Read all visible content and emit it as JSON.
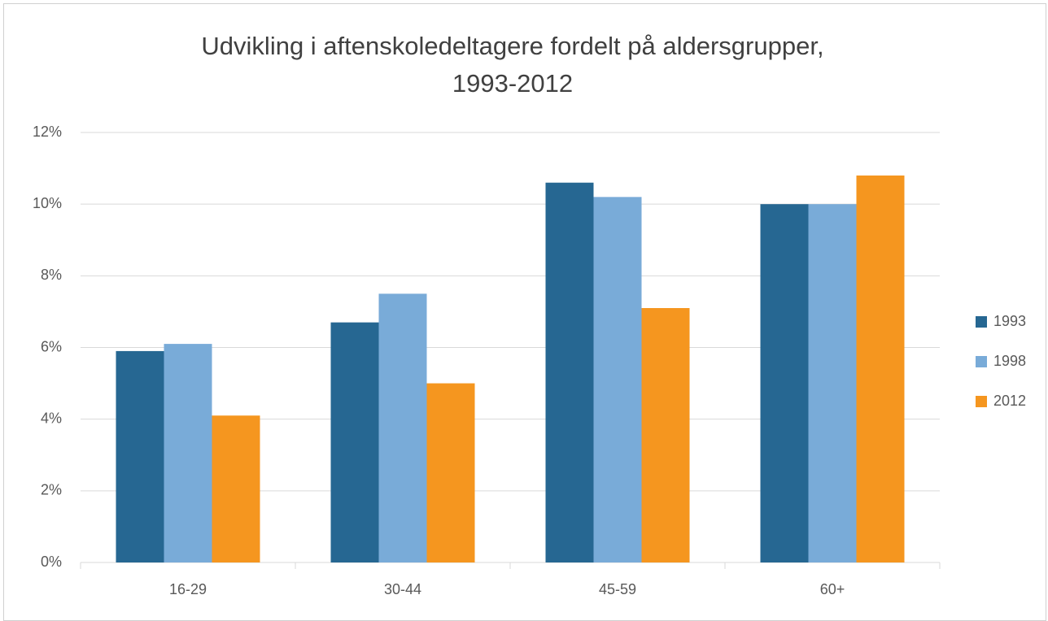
{
  "chart_data": {
    "type": "bar",
    "title": "Udvikling i aftenskoledeltagere fordelt på aldersgrupper,\n1993-2012",
    "categories": [
      "16-29",
      "30-44",
      "45-59",
      "60+"
    ],
    "series": [
      {
        "name": "1993",
        "color": "#266792",
        "values": [
          5.9,
          6.7,
          10.6,
          10.0
        ]
      },
      {
        "name": "1998",
        "color": "#79abd8",
        "values": [
          6.1,
          7.5,
          10.2,
          10.0
        ]
      },
      {
        "name": "2012",
        "color": "#f5961f",
        "values": [
          4.1,
          5.0,
          7.1,
          10.8
        ]
      }
    ],
    "ylim": [
      0,
      12
    ],
    "yticks": [
      {
        "value": 0,
        "label": "0%"
      },
      {
        "value": 2,
        "label": "2%"
      },
      {
        "value": 4,
        "label": "4%"
      },
      {
        "value": 6,
        "label": "6%"
      },
      {
        "value": 8,
        "label": "8%"
      },
      {
        "value": 10,
        "label": "10%"
      },
      {
        "value": 12,
        "label": "12%"
      }
    ],
    "grid": true,
    "legend": "right"
  }
}
